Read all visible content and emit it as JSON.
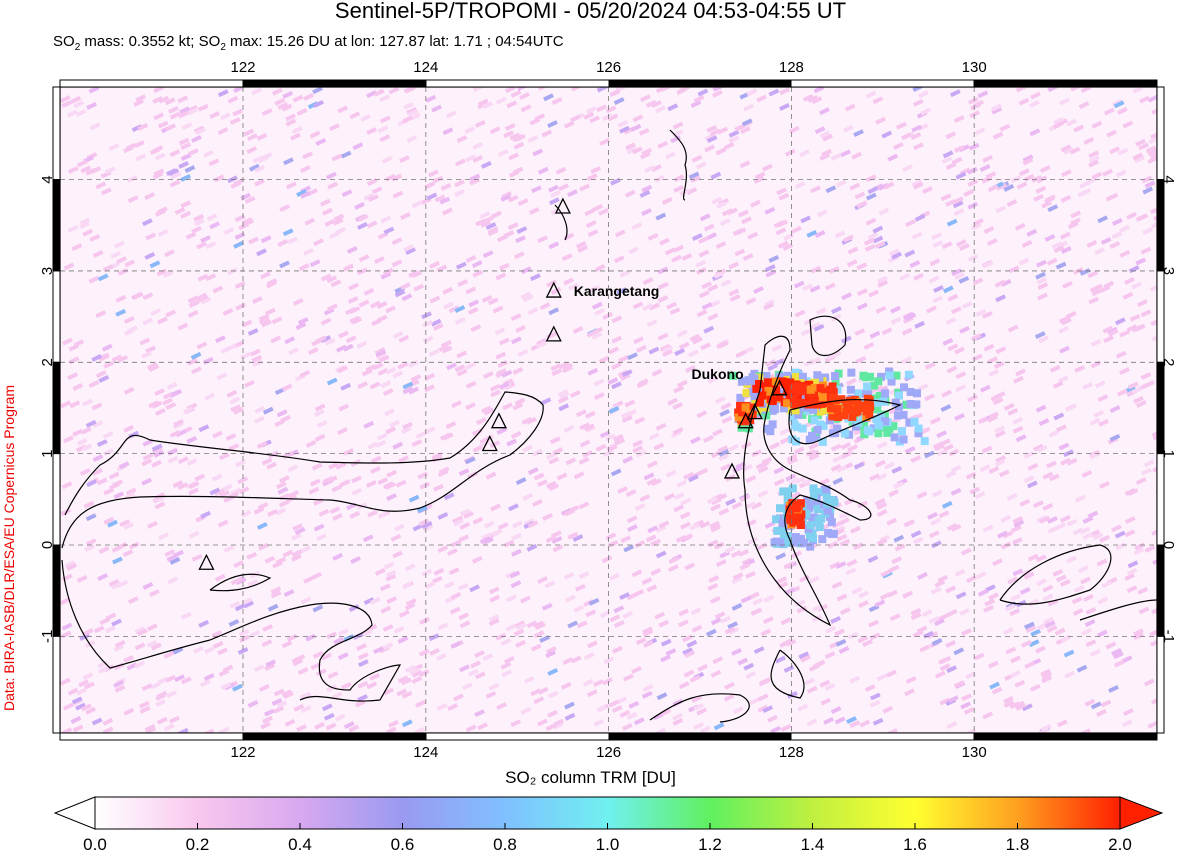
{
  "title": "Sentinel-5P/TROPOMI - 05/20/2024 04:53-04:55 UT",
  "subtitle": {
    "p1": "SO",
    "s1": "2",
    "p2": " mass: 0.3552 kt; SO",
    "s2": "2",
    "p3": " max: 15.26 DU at lon: 127.87 lat: 1.71 ; 04:54UTC"
  },
  "credit": "Data: BIRA-IASB/DLR/ESA/EU Copernicus Program",
  "map": {
    "lon_range": [
      120,
      132
    ],
    "lat_range": [
      -2,
      5
    ],
    "lon_ticks": [
      "122",
      "124",
      "126",
      "128",
      "130"
    ],
    "lat_ticks": [
      "4",
      "3",
      "2",
      "1",
      "0",
      "-1"
    ],
    "grid": true,
    "volcanoes": [
      {
        "name": "Karangetang",
        "lon": 125.4,
        "lat": 2.78,
        "label": "Karangetang"
      },
      {
        "name": "Dukono",
        "lon": 127.87,
        "lat": 1.71,
        "label": "Dukono"
      },
      {
        "lon": 125.5,
        "lat": 3.7
      },
      {
        "lon": 125.4,
        "lat": 2.3
      },
      {
        "lon": 124.8,
        "lat": 1.35
      },
      {
        "lon": 124.7,
        "lat": 1.1
      },
      {
        "lon": 127.6,
        "lat": 1.45
      },
      {
        "lon": 127.5,
        "lat": 1.35
      },
      {
        "lon": 127.35,
        "lat": 0.8
      },
      {
        "lon": 121.6,
        "lat": -0.2
      }
    ]
  },
  "colorbar": {
    "label": "SO₂ column TRM [DU]",
    "ticks": [
      "0.0",
      "0.2",
      "0.4",
      "0.6",
      "0.8",
      "1.0",
      "1.2",
      "1.4",
      "1.6",
      "1.8",
      "2.0"
    ],
    "range": [
      0,
      2.0
    ],
    "colors": [
      "#ffffff",
      "#f8c8ee",
      "#d8a8f0",
      "#9a9af0",
      "#80c0ff",
      "#70f0f0",
      "#60f060",
      "#c0f040",
      "#ffff30",
      "#ffa020",
      "#ff2000"
    ]
  }
}
